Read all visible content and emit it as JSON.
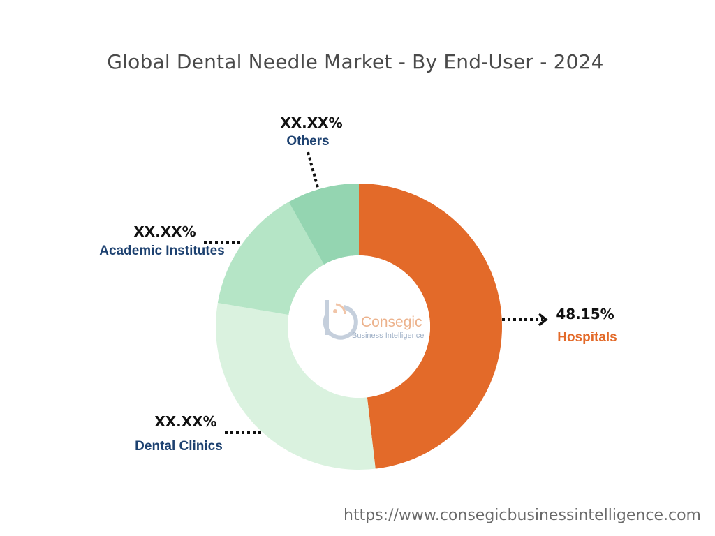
{
  "title": "Global Dental Needle Market - By End-User - 2024",
  "chart_data": {
    "type": "pie",
    "title": "Global Dental Needle Market - By End-User - 2024",
    "categories": [
      "Hospitals",
      "Dental Clinics",
      "Academic Institutes",
      "Others"
    ],
    "values": [
      48.15,
      29.5,
      14.2,
      8.15
    ],
    "value_labels": [
      "48.15%",
      "XX.XX%",
      "XX.XX%",
      "XX.XX%"
    ],
    "colors": [
      "#e36a29",
      "#daf2df",
      "#b5e5c6",
      "#94d5b1"
    ],
    "label_color": "#1d4170",
    "highlight_label_color": "#e36a29",
    "donut": true
  },
  "logo": {
    "name": "Consegic",
    "tagline": "Business Intelligence"
  },
  "footer": {
    "url": "https://www.consegicbusinessintelligence.com"
  }
}
